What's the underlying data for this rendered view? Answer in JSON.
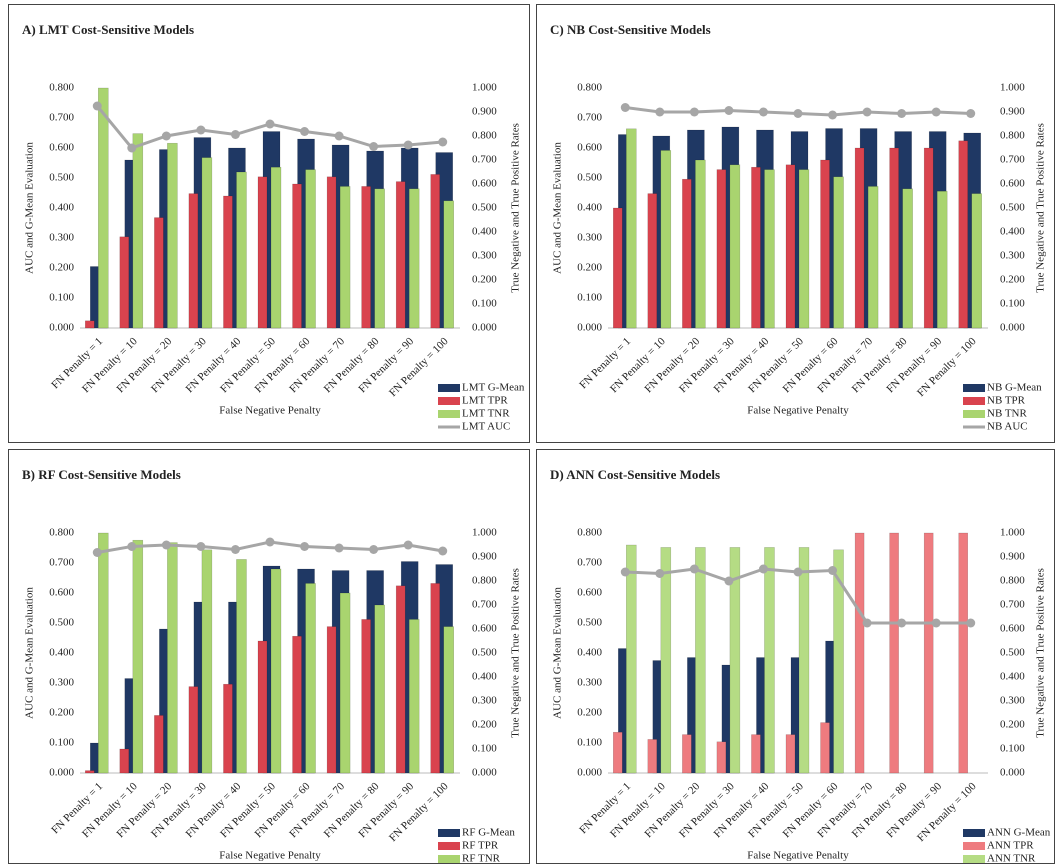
{
  "chart_data": [
    {
      "type": "bar",
      "title": "A) LMT Cost-Sensitive Models",
      "x_label": "False Negative Penalty",
      "y_label": "AUC and G-Mean Evaluation",
      "y2_label": "True Negative and True Positive Rates",
      "categories": [
        "FN Penalty = 1",
        "FN Penalty = 10",
        "FN Penalty = 20",
        "FN Penalty = 30",
        "FN Penalty = 40",
        "FN Penalty = 50",
        "FN Penalty = 60",
        "FN Penalty = 70",
        "FN Penalty = 80",
        "FN Penalty = 90",
        "FN Penalty = 100"
      ],
      "series": [
        {
          "name": "LMT G-Mean",
          "color": "#1f3864",
          "values": [
            0.205,
            0.56,
            0.595,
            0.635,
            0.6,
            0.655,
            0.63,
            0.61,
            0.59,
            0.6,
            0.585
          ]
        },
        {
          "name": "LMT TPR",
          "color": "#d9434e",
          "axis": "y2",
          "values": [
            0.03,
            0.38,
            0.46,
            0.56,
            0.55,
            0.63,
            0.6,
            0.63,
            0.59,
            0.61,
            0.64
          ]
        },
        {
          "name": "LMT TNR",
          "color": "#a9d46f",
          "axis": "y2",
          "values": [
            1.0,
            0.81,
            0.77,
            0.71,
            0.65,
            0.67,
            0.66,
            0.59,
            0.58,
            0.58,
            0.53
          ]
        },
        {
          "name": "LMT AUC",
          "color": "#a6a6a6",
          "type": "line",
          "values": [
            0.74,
            0.6,
            0.64,
            0.66,
            0.645,
            0.68,
            0.655,
            0.64,
            0.605,
            0.61,
            0.62
          ]
        }
      ],
      "ylim": [
        0,
        0.8
      ],
      "yticks": [
        {
          "value": 0,
          "label": "0.000"
        },
        {
          "value": 0.1,
          "label": "0.100"
        },
        {
          "value": 0.2,
          "label": "0.200"
        },
        {
          "value": 0.3,
          "label": "0.300"
        },
        {
          "value": 0.4,
          "label": "0.400"
        },
        {
          "value": 0.5,
          "label": "0.500"
        },
        {
          "value": 0.6,
          "label": "0.600"
        },
        {
          "value": 0.7,
          "label": "0.700"
        },
        {
          "value": 0.8,
          "label": "0.800"
        }
      ],
      "y2lim": [
        0,
        1
      ],
      "y2ticks": [
        {
          "value": 0,
          "label": "0.000"
        },
        {
          "value": 0.1,
          "label": "0.100"
        },
        {
          "value": 0.2,
          "label": "0.200"
        },
        {
          "value": 0.3,
          "label": "0.300"
        },
        {
          "value": 0.4,
          "label": "0.400"
        },
        {
          "value": 0.5,
          "label": "0.500"
        },
        {
          "value": 0.6,
          "label": "0.600"
        },
        {
          "value": 0.7,
          "label": "0.700"
        },
        {
          "value": 0.8,
          "label": "0.800"
        },
        {
          "value": 0.9,
          "label": "0.900"
        },
        {
          "value": 1,
          "label": "1.000"
        }
      ]
    },
    {
      "type": "bar",
      "title": "C) NB Cost-Sensitive Models",
      "x_label": "False Negative Penalty",
      "y_label": "AUC and G-Mean Evaluation",
      "y2_label": "True Negative and True Positive Rates",
      "categories": [
        "FN Penalty = 1",
        "FN Penalty = 10",
        "FN Penalty = 20",
        "FN Penalty = 30",
        "FN Penalty = 40",
        "FN Penalty = 50",
        "FN Penalty = 60",
        "FN Penalty = 70",
        "FN Penalty = 80",
        "FN Penalty = 90",
        "FN Penalty = 100"
      ],
      "series": [
        {
          "name": "NB G-Mean",
          "color": "#1f3864",
          "values": [
            0.645,
            0.64,
            0.66,
            0.67,
            0.66,
            0.655,
            0.665,
            0.665,
            0.655,
            0.655,
            0.65
          ]
        },
        {
          "name": "NB TPR",
          "color": "#d9434e",
          "axis": "y2",
          "values": [
            0.5,
            0.56,
            0.62,
            0.66,
            0.67,
            0.68,
            0.7,
            0.75,
            0.75,
            0.75,
            0.78
          ]
        },
        {
          "name": "NB TNR",
          "color": "#a9d46f",
          "axis": "y2",
          "values": [
            0.83,
            0.74,
            0.7,
            0.68,
            0.66,
            0.66,
            0.63,
            0.59,
            0.58,
            0.57,
            0.56
          ]
        },
        {
          "name": "NB AUC",
          "color": "#a6a6a6",
          "type": "line",
          "values": [
            0.735,
            0.72,
            0.72,
            0.725,
            0.72,
            0.715,
            0.71,
            0.72,
            0.715,
            0.72,
            0.715
          ]
        }
      ],
      "ylim": [
        0,
        0.8
      ],
      "yticks": [
        {
          "value": 0,
          "label": "0.000"
        },
        {
          "value": 0.1,
          "label": "0.100"
        },
        {
          "value": 0.2,
          "label": "0.200"
        },
        {
          "value": 0.3,
          "label": "0.300"
        },
        {
          "value": 0.4,
          "label": "0.400"
        },
        {
          "value": 0.5,
          "label": "0.500"
        },
        {
          "value": 0.6,
          "label": "0.600"
        },
        {
          "value": 0.7,
          "label": "0.700"
        },
        {
          "value": 0.8,
          "label": "0.800"
        }
      ],
      "y2lim": [
        0,
        1
      ],
      "y2ticks": [
        {
          "value": 0,
          "label": "0.000"
        },
        {
          "value": 0.1,
          "label": "0.100"
        },
        {
          "value": 0.2,
          "label": "0.200"
        },
        {
          "value": 0.3,
          "label": "0.300"
        },
        {
          "value": 0.4,
          "label": "0.400"
        },
        {
          "value": 0.5,
          "label": "0.500"
        },
        {
          "value": 0.6,
          "label": "0.600"
        },
        {
          "value": 0.7,
          "label": "0.700"
        },
        {
          "value": 0.8,
          "label": "0.800"
        },
        {
          "value": 0.9,
          "label": "0.900"
        },
        {
          "value": 1,
          "label": "1.000"
        }
      ]
    },
    {
      "type": "bar",
      "title": "B) RF Cost-Sensitive Models",
      "x_label": "False Negative Penalty",
      "y_label": "AUC and G-Mean Evaluation",
      "y2_label": "True Negative and True Positive Rates",
      "categories": [
        "FN Penalty = 1",
        "FN Penalty = 10",
        "FN Penalty = 20",
        "FN Penalty = 30",
        "FN Penalty = 40",
        "FN Penalty = 50",
        "FN Penalty = 60",
        "FN Penalty = 70",
        "FN Penalty = 80",
        "FN Penalty = 90",
        "FN Penalty = 100"
      ],
      "series": [
        {
          "name": "RF G-Mean",
          "color": "#1f3864",
          "values": [
            0.1,
            0.315,
            0.48,
            0.57,
            0.57,
            0.69,
            0.68,
            0.675,
            0.675,
            0.705,
            0.695
          ]
        },
        {
          "name": "RF TPR",
          "color": "#d9434e",
          "axis": "y2",
          "values": [
            0.01,
            0.1,
            0.24,
            0.36,
            0.37,
            0.55,
            0.57,
            0.61,
            0.64,
            0.78,
            0.79
          ]
        },
        {
          "name": "RF TNR",
          "color": "#a9d46f",
          "axis": "y2",
          "values": [
            1.0,
            0.97,
            0.96,
            0.93,
            0.89,
            0.85,
            0.79,
            0.75,
            0.7,
            0.64,
            0.61
          ]
        },
        {
          "color": "#a6a6a6",
          "type": "line",
          "values": [
            0.735,
            0.755,
            0.76,
            0.755,
            0.745,
            0.77,
            0.755,
            0.75,
            0.745,
            0.76,
            0.74
          ]
        }
      ],
      "ylim": [
        0,
        0.8
      ],
      "yticks": [
        {
          "value": 0,
          "label": "0.000"
        },
        {
          "value": 0.1,
          "label": "0.100"
        },
        {
          "value": 0.2,
          "label": "0.200"
        },
        {
          "value": 0.3,
          "label": "0.300"
        },
        {
          "value": 0.4,
          "label": "0.400"
        },
        {
          "value": 0.5,
          "label": "0.500"
        },
        {
          "value": 0.6,
          "label": "0.600"
        },
        {
          "value": 0.7,
          "label": "0.700"
        },
        {
          "value": 0.8,
          "label": "0.800"
        }
      ],
      "y2lim": [
        0,
        1
      ],
      "y2ticks": [
        {
          "value": 0,
          "label": "0.000"
        },
        {
          "value": 0.1,
          "label": "0.100"
        },
        {
          "value": 0.2,
          "label": "0.200"
        },
        {
          "value": 0.3,
          "label": "0.300"
        },
        {
          "value": 0.4,
          "label": "0.400"
        },
        {
          "value": 0.5,
          "label": "0.500"
        },
        {
          "value": 0.6,
          "label": "0.600"
        },
        {
          "value": 0.7,
          "label": "0.700"
        },
        {
          "value": 0.8,
          "label": "0.800"
        },
        {
          "value": 0.9,
          "label": "0.900"
        },
        {
          "value": 1,
          "label": "1.000"
        }
      ]
    },
    {
      "type": "bar",
      "title": "D) ANN Cost-Sensitive Models",
      "x_label": "False Negative Penalty",
      "y_label": "AUC and G-Mean Evaluation",
      "y2_label": "True Negative and True Positive Rates",
      "categories": [
        "FN Penalty = 1",
        "FN Penalty = 10",
        "FN Penalty = 20",
        "FN Penalty = 30",
        "FN Penalty = 40",
        "FN Penalty = 50",
        "FN Penalty = 60",
        "FN Penalty = 70",
        "FN Penalty = 80",
        "FN Penalty = 90",
        "FN Penalty = 100"
      ],
      "series": [
        {
          "name": "ANN G-Mean",
          "color": "#1f3864",
          "values": [
            0.415,
            0.375,
            0.385,
            0.36,
            0.385,
            0.385,
            0.44,
            0,
            0,
            0,
            0
          ]
        },
        {
          "name": "ANN TPR",
          "color": "#ee7b7f",
          "axis": "y2",
          "values": [
            0.17,
            0.14,
            0.16,
            0.13,
            0.16,
            0.16,
            0.21,
            1,
            1,
            1,
            1
          ]
        },
        {
          "name": "ANN TNR",
          "color": "#b5dc84",
          "axis": "y2",
          "values": [
            0.95,
            0.94,
            0.94,
            0.94,
            0.94,
            0.94,
            0.93,
            0,
            0,
            0,
            0
          ]
        },
        {
          "color": "#a6a6a6",
          "type": "line",
          "values": [
            0.67,
            0.665,
            0.68,
            0.64,
            0.68,
            0.67,
            0.675,
            0.5,
            0.5,
            0.5,
            0.5
          ]
        }
      ],
      "ylim": [
        0,
        0.8
      ],
      "yticks": [
        {
          "value": 0,
          "label": "0.000"
        },
        {
          "value": 0.1,
          "label": "0.100"
        },
        {
          "value": 0.2,
          "label": "0.200"
        },
        {
          "value": 0.3,
          "label": "0.300"
        },
        {
          "value": 0.4,
          "label": "0.400"
        },
        {
          "value": 0.5,
          "label": "0.500"
        },
        {
          "value": 0.6,
          "label": "0.600"
        },
        {
          "value": 0.7,
          "label": "0.700"
        },
        {
          "value": 0.8,
          "label": "0.800"
        }
      ],
      "y2lim": [
        0,
        1
      ],
      "y2ticks": [
        {
          "value": 0,
          "label": "0.000"
        },
        {
          "value": 0.1,
          "label": "0.100"
        },
        {
          "value": 0.2,
          "label": "0.200"
        },
        {
          "value": 0.3,
          "label": "0.300"
        },
        {
          "value": 0.4,
          "label": "0.400"
        },
        {
          "value": 0.5,
          "label": "0.500"
        },
        {
          "value": 0.6,
          "label": "0.600"
        },
        {
          "value": 0.7,
          "label": "0.700"
        },
        {
          "value": 0.8,
          "label": "0.800"
        },
        {
          "value": 0.9,
          "label": "0.900"
        },
        {
          "value": 1,
          "label": "1.000"
        }
      ]
    }
  ]
}
